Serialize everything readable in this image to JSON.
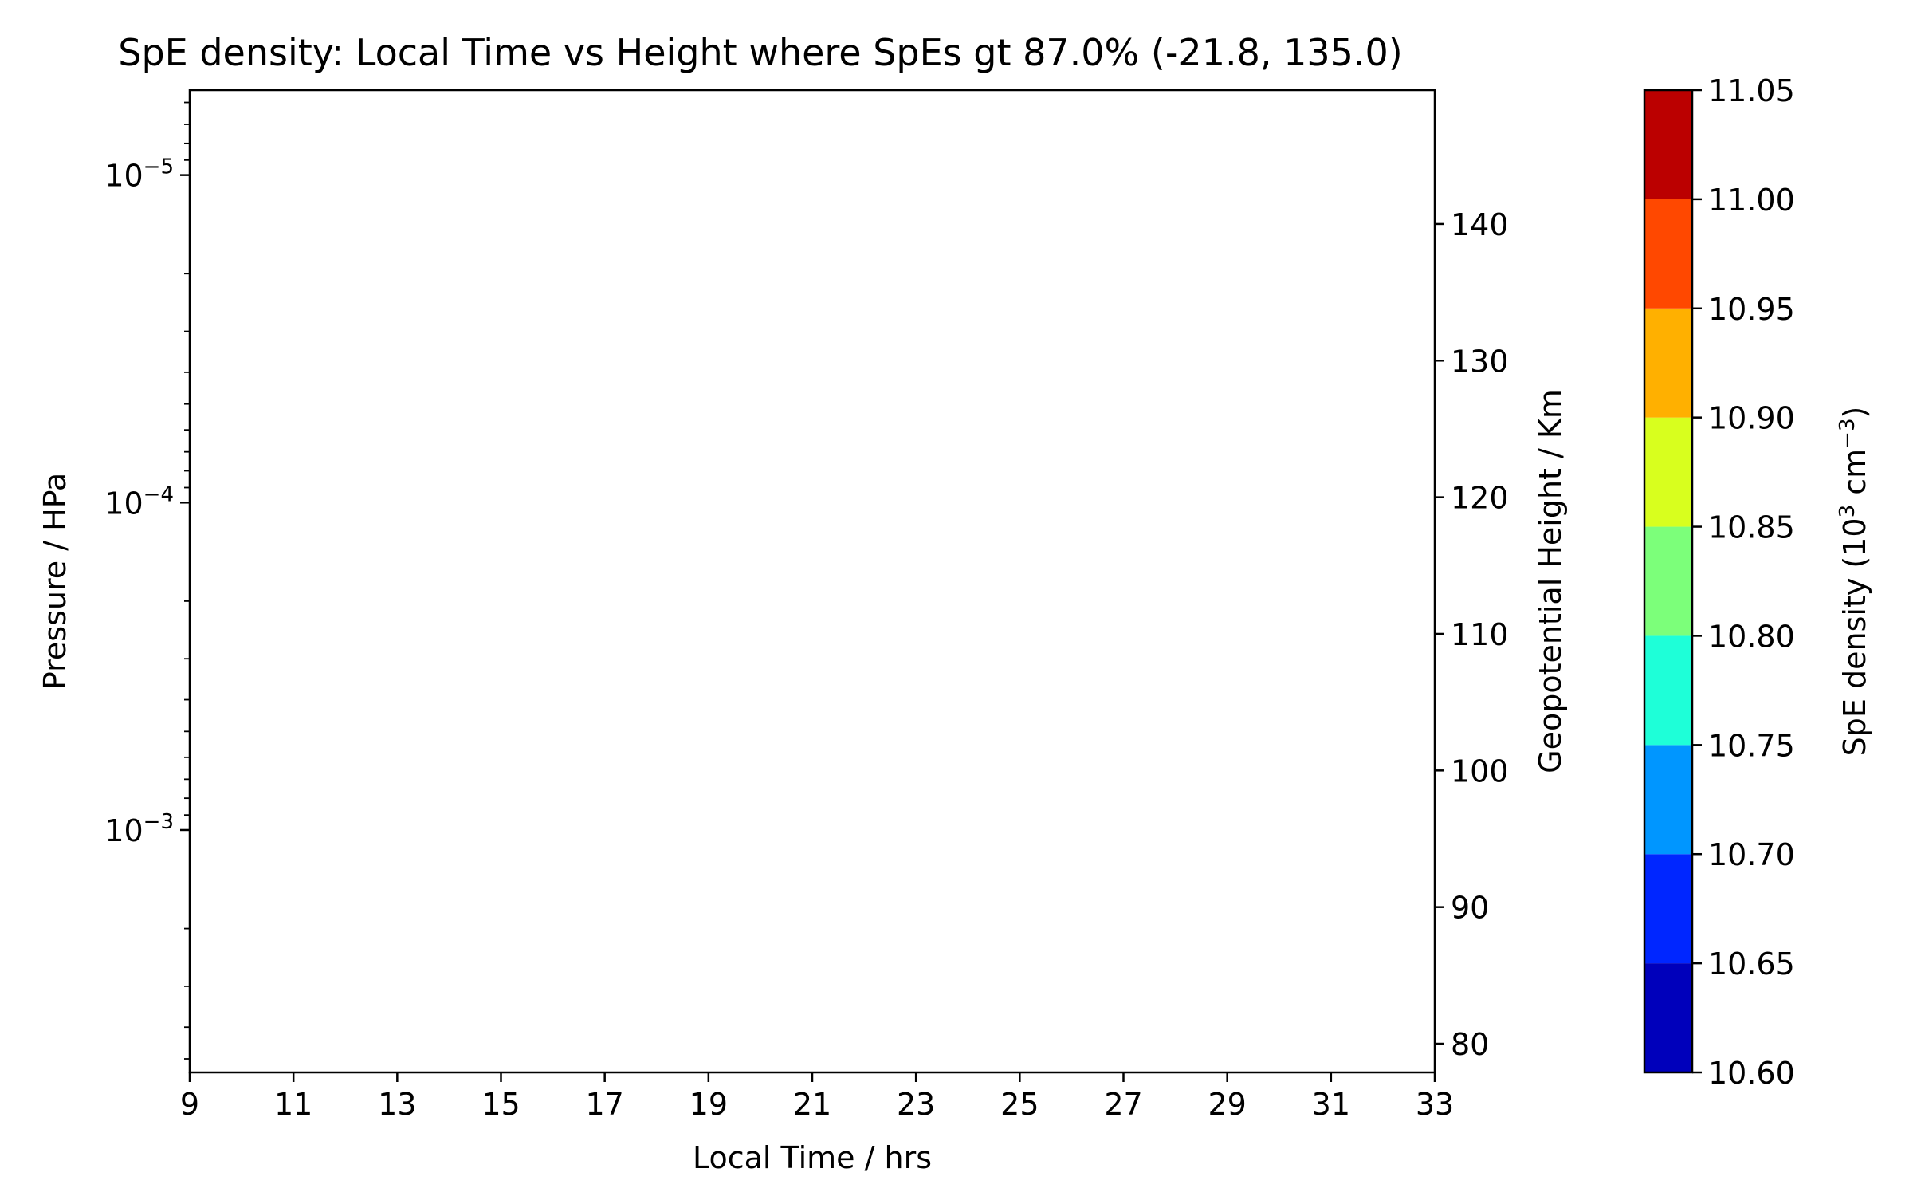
{
  "chart_data": {
    "type": "heatmap",
    "title": "SpE density: Local Time vs Height where SpEs gt 87.0%  (-21.8, 135.0)",
    "xlabel": "Local Time / hrs",
    "ylabel_left": "Pressure / HPa",
    "ylabel_right": "Geopotential Height / Km",
    "colorbar_label_base": "SpE density (10",
    "colorbar_label_exp1": "3",
    "colorbar_label_mid": " cm",
    "colorbar_label_exp2": "−3",
    "colorbar_label_end": ")",
    "xlim": [
      9,
      33
    ],
    "x_ticks": [
      9,
      11,
      13,
      15,
      17,
      19,
      21,
      23,
      25,
      27,
      29,
      31,
      33
    ],
    "x_tick_labels": [
      "9",
      "11",
      "13",
      "15",
      "17",
      "19",
      "21",
      "23",
      "25",
      "27",
      "29",
      "31",
      "33"
    ],
    "y_left_scale": "log",
    "y_left_lim": [
      0.0055,
      5.5e-06
    ],
    "y_left_ticks": [
      {
        "value": 1e-05,
        "base": "10",
        "exp": "−5"
      },
      {
        "value": 0.0001,
        "base": "10",
        "exp": "−4"
      },
      {
        "value": 0.001,
        "base": "10",
        "exp": "−3"
      }
    ],
    "y_right_lim": [
      77.9,
      149.8
    ],
    "y_right_ticks": [
      80,
      90,
      100,
      110,
      120,
      130,
      140
    ],
    "y_right_tick_labels": [
      "80",
      "90",
      "100",
      "110",
      "120",
      "130",
      "140"
    ],
    "colorbar_levels": [
      10.6,
      10.65,
      10.7,
      10.75,
      10.8,
      10.85,
      10.9,
      10.95,
      11.0,
      11.05
    ],
    "colorbar_tick_labels": [
      "10.60",
      "10.65",
      "10.70",
      "10.75",
      "10.80",
      "10.85",
      "10.90",
      "10.95",
      "11.00",
      "11.05"
    ],
    "colorbar_colors": [
      "#0000bb",
      "#0026ff",
      "#0096ff",
      "#1effd8",
      "#7cff7a",
      "#d8ff1e",
      "#ffb000",
      "#ff4800",
      "#bb0000"
    ],
    "values": []
  }
}
